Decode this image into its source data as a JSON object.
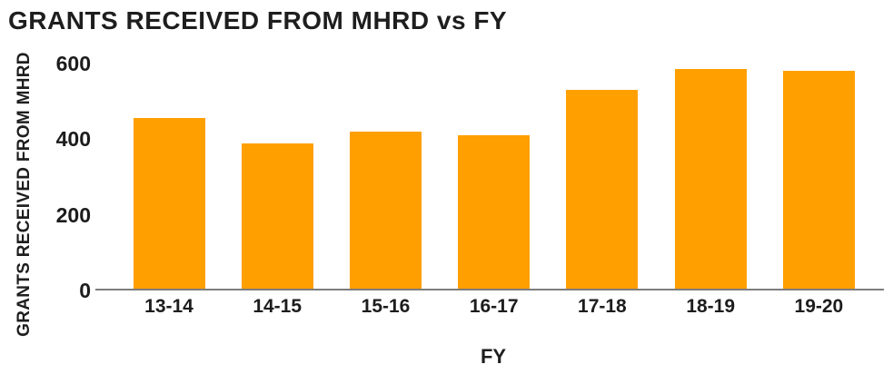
{
  "chart_data": {
    "type": "bar",
    "title": "GRANTS RECEIVED FROM MHRD vs FY",
    "xlabel": "FY",
    "ylabel": "GRANTS RECEIVED FROM MHRD",
    "categories": [
      "13-14",
      "14-15",
      "15-16",
      "16-17",
      "17-18",
      "18-19",
      "19-20"
    ],
    "values": [
      455,
      390,
      420,
      410,
      530,
      585,
      580
    ],
    "ylim": [
      0,
      600
    ],
    "yticks": [
      0,
      200,
      400,
      600
    ],
    "grid": false,
    "legend": "none",
    "colors": {
      "bar": "#ff9f00",
      "axis_line": "#7d7d7d",
      "text": "#1c1c1c",
      "background": "#ffffff"
    }
  }
}
